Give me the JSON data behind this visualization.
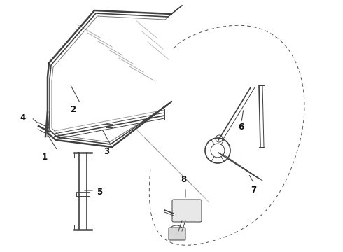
{
  "background_color": "#ffffff",
  "line_color": "#404040",
  "label_color": "#111111",
  "label_fontsize": 8.5,
  "figsize": [
    4.9,
    3.6
  ],
  "dpi": 100
}
